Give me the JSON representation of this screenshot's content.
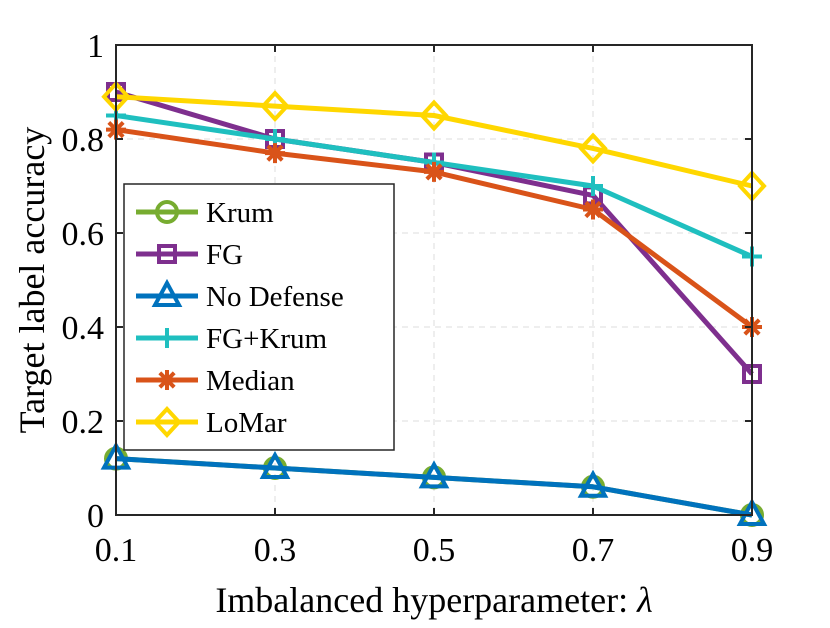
{
  "chart_data": {
    "type": "line",
    "title": "",
    "xlabel": "Imbalanced hyperparameter: ",
    "xlabel_symbol": "λ",
    "ylabel": "Target label accuracy",
    "x": [
      0.1,
      0.3,
      0.5,
      0.7,
      0.9
    ],
    "x_tick_labels": [
      "0.1",
      "0.3",
      "0.5",
      "0.7",
      "0.9"
    ],
    "y_ticks": [
      0,
      0.2,
      0.4,
      0.6,
      0.8,
      1
    ],
    "y_tick_labels": [
      "0",
      "0.2",
      "0.4",
      "0.6",
      "0.8",
      "1"
    ],
    "xlim": [
      0.1,
      0.9
    ],
    "ylim": [
      0,
      1
    ],
    "grid": true,
    "legend_position": "center-left",
    "series": [
      {
        "name": "Krum",
        "color": "#77AC30",
        "marker": "circle",
        "values": [
          0.12,
          0.1,
          0.08,
          0.06,
          0.0
        ]
      },
      {
        "name": "FG",
        "color": "#7E2F8E",
        "marker": "square",
        "values": [
          0.9,
          0.8,
          0.75,
          0.68,
          0.3
        ]
      },
      {
        "name": "No Defense",
        "color": "#0072BD",
        "marker": "triangle",
        "values": [
          0.12,
          0.1,
          0.08,
          0.06,
          0.0
        ]
      },
      {
        "name": "FG+Krum",
        "color": "#1FBFBF",
        "marker": "plus",
        "values": [
          0.85,
          0.8,
          0.75,
          0.7,
          0.55
        ]
      },
      {
        "name": "Median",
        "color": "#D95319",
        "marker": "asterisk",
        "values": [
          0.82,
          0.77,
          0.73,
          0.65,
          0.4
        ]
      },
      {
        "name": "LoMar",
        "color": "#FFD700",
        "marker": "diamond",
        "values": [
          0.89,
          0.87,
          0.85,
          0.78,
          0.7
        ]
      }
    ]
  }
}
